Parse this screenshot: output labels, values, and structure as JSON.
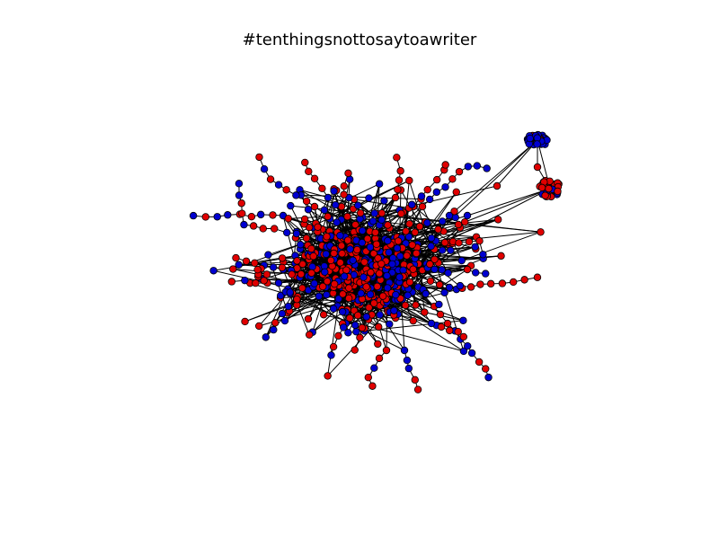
{
  "title": "#tenthingsnottosaytoawriter",
  "colors": {
    "node_red": "#e00000",
    "node_blue": "#0000d0",
    "edge": "#000000",
    "node_outline": "#000000"
  },
  "legend": [],
  "graph": {
    "type": "network",
    "node_colors": [
      "red",
      "blue"
    ]
  }
}
